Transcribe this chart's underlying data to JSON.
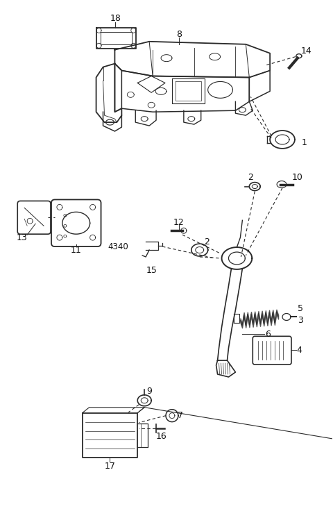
{
  "bg_color": "#ffffff",
  "line_color": "#2a2a2a",
  "fig_width": 4.8,
  "fig_height": 7.36,
  "dpi": 100
}
